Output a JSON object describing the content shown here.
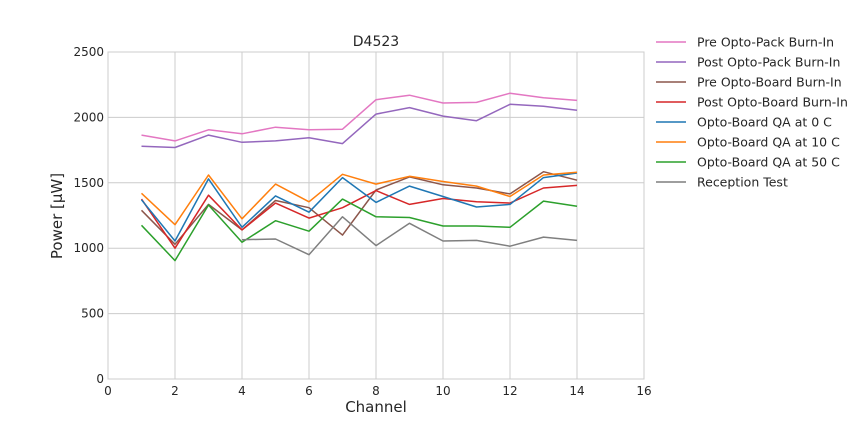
{
  "chart_data": {
    "type": "line",
    "title": "D4523",
    "xlabel": "Channel",
    "ylabel": "Power [μW]",
    "xlim": [
      0,
      16
    ],
    "ylim": [
      0,
      2500
    ],
    "xticks": [
      "0",
      "2",
      "4",
      "6",
      "8",
      "10",
      "12",
      "14",
      "16"
    ],
    "yticks": [
      "0",
      "500",
      "1000",
      "1500",
      "2000",
      "2500"
    ],
    "grid": true,
    "legend_position": "outside-right",
    "x": [
      1,
      2,
      3,
      4,
      5,
      6,
      7,
      8,
      9,
      10,
      11,
      12,
      13,
      14
    ],
    "series": [
      {
        "name": "Pre Opto-Pack Burn-In",
        "color": "#e377c2",
        "values": [
          1865,
          1820,
          1905,
          1875,
          1925,
          1905,
          1910,
          2135,
          2170,
          2110,
          2115,
          2185,
          2150,
          2130
        ]
      },
      {
        "name": "Post Opto-Pack Burn-In",
        "color": "#9467bd",
        "values": [
          1780,
          1770,
          1865,
          1810,
          1820,
          1845,
          1800,
          2025,
          2075,
          2010,
          1975,
          2100,
          2085,
          2055
        ]
      },
      {
        "name": "Pre Opto-Board Burn-In",
        "color": "#8c564b",
        "values": [
          1290,
          1030,
          1335,
          1140,
          1365,
          1310,
          1100,
          1445,
          1545,
          1485,
          1460,
          1415,
          1585,
          1520
        ]
      },
      {
        "name": "Post Opto-Board Burn-In",
        "color": "#d62728",
        "values": [
          1375,
          1000,
          1405,
          1140,
          1345,
          1230,
          1310,
          1440,
          1335,
          1380,
          1355,
          1345,
          1460,
          1480
        ]
      },
      {
        "name": "Opto-Board QA at 0 C",
        "color": "#1f77b4",
        "values": [
          1370,
          1055,
          1530,
          1160,
          1400,
          1275,
          1540,
          1350,
          1475,
          1395,
          1315,
          1335,
          1540,
          1575
        ]
      },
      {
        "name": "Opto-Board QA at 10 C",
        "color": "#ff7f0e",
        "values": [
          1420,
          1180,
          1560,
          1225,
          1490,
          1355,
          1565,
          1490,
          1550,
          1510,
          1475,
          1395,
          1560,
          1580
        ]
      },
      {
        "name": "Opto-Board QA at 50 C",
        "color": "#2ca02c",
        "values": [
          1175,
          905,
          1330,
          1045,
          1210,
          1130,
          1375,
          1240,
          1235,
          1170,
          1170,
          1160,
          1360,
          1320
        ]
      },
      {
        "name": "Reception Test",
        "color": "#7f7f7f",
        "values": [
          null,
          null,
          null,
          1065,
          1070,
          950,
          1240,
          1020,
          1190,
          1055,
          1060,
          1015,
          1085,
          1060
        ]
      }
    ]
  }
}
